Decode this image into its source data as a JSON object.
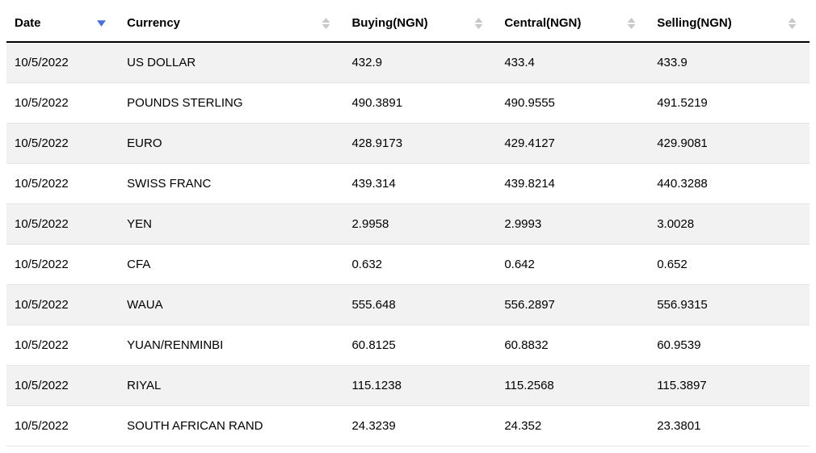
{
  "table": {
    "columns": [
      {
        "key": "date",
        "label": "Date",
        "sort": "desc"
      },
      {
        "key": "currency",
        "label": "Currency",
        "sort": "neutral"
      },
      {
        "key": "buying",
        "label": "Buying(NGN)",
        "sort": "neutral"
      },
      {
        "key": "central",
        "label": "Central(NGN)",
        "sort": "neutral"
      },
      {
        "key": "selling",
        "label": "Selling(NGN)",
        "sort": "neutral"
      }
    ],
    "rows": [
      {
        "date": "10/5/2022",
        "currency": "US DOLLAR",
        "buying": "432.9",
        "central": "433.4",
        "selling": "433.9"
      },
      {
        "date": "10/5/2022",
        "currency": "POUNDS STERLING",
        "buying": "490.3891",
        "central": "490.9555",
        "selling": "491.5219"
      },
      {
        "date": "10/5/2022",
        "currency": "EURO",
        "buying": "428.9173",
        "central": "429.4127",
        "selling": "429.9081"
      },
      {
        "date": "10/5/2022",
        "currency": "SWISS FRANC",
        "buying": "439.314",
        "central": "439.8214",
        "selling": "440.3288"
      },
      {
        "date": "10/5/2022",
        "currency": "YEN",
        "buying": "2.9958",
        "central": "2.9993",
        "selling": "3.0028"
      },
      {
        "date": "10/5/2022",
        "currency": "CFA",
        "buying": "0.632",
        "central": "0.642",
        "selling": "0.652"
      },
      {
        "date": "10/5/2022",
        "currency": "WAUA",
        "buying": "555.648",
        "central": "556.2897",
        "selling": "556.9315"
      },
      {
        "date": "10/5/2022",
        "currency": "YUAN/RENMINBI",
        "buying": "60.8125",
        "central": "60.8832",
        "selling": "60.9539"
      },
      {
        "date": "10/5/2022",
        "currency": "RIYAL",
        "buying": "115.1238",
        "central": "115.2568",
        "selling": "115.3897"
      },
      {
        "date": "10/5/2022",
        "currency": "SOUTH AFRICAN RAND",
        "buying": "24.3239",
        "central": "24.352",
        "selling": "23.3801"
      }
    ],
    "colors": {
      "header_border": "#000000",
      "row_border": "#e5e5e5",
      "row_odd_bg": "#f2f2f2",
      "row_even_bg": "#ffffff",
      "sort_active": "#4a6fd8",
      "sort_inactive": "#c9c9c9",
      "text": "#000000"
    }
  }
}
